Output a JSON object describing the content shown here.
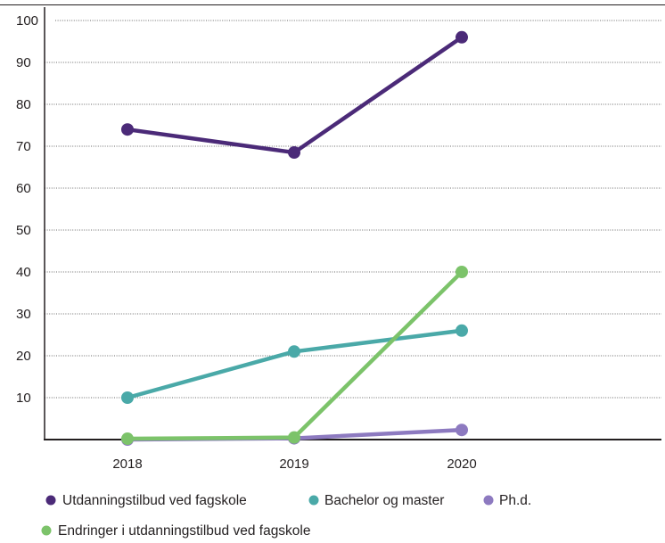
{
  "chart_data": {
    "type": "line",
    "title": "",
    "xlabel": "",
    "ylabel": "",
    "categories": [
      "2018",
      "2019",
      "2020"
    ],
    "ylim": [
      0,
      100
    ],
    "yticks": [
      10,
      20,
      30,
      40,
      50,
      60,
      70,
      80,
      90,
      100
    ],
    "grid": true,
    "legend_position": "bottom",
    "series": [
      {
        "name": "Utdanningstilbud ved fagskole",
        "color": "#4b2a78",
        "values": [
          74,
          68.5,
          96
        ]
      },
      {
        "name": "Bachelor og master",
        "color": "#4aa9a8",
        "values": [
          10,
          21,
          26
        ]
      },
      {
        "name": "Ph.d.",
        "color": "#8d7ac0",
        "values": [
          0,
          0.3,
          2.3
        ]
      },
      {
        "name": "Endringer i utdanningstilbud ved fagskole",
        "color": "#7cc36a",
        "values": [
          0.2,
          0.5,
          40
        ]
      }
    ]
  }
}
